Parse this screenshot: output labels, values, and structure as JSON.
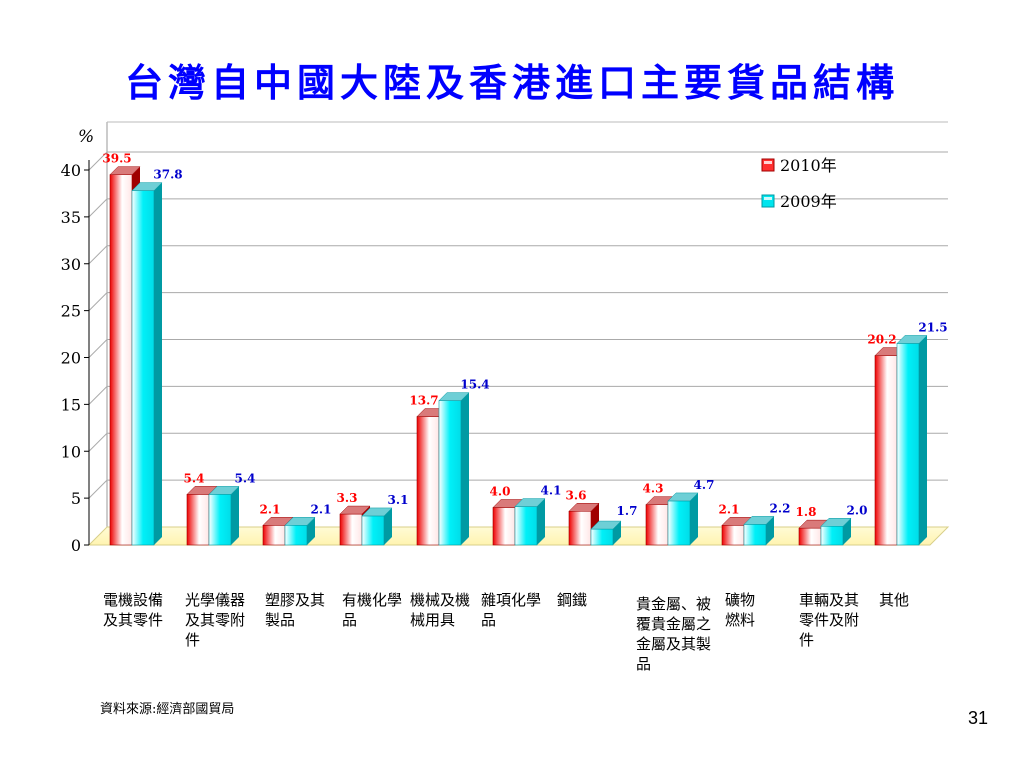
{
  "slide": {
    "title": "台灣自中國大陸及香港進口主要貨品結構",
    "source": "資料來源:經濟部國貿局",
    "page_number": "31"
  },
  "chart_data": {
    "type": "bar",
    "title": "台灣自中國大陸及香港進口主要貨品結構",
    "ylabel": "%",
    "ylim": [
      0,
      40
    ],
    "yticks": [
      0,
      5,
      10,
      15,
      20,
      25,
      30,
      35,
      40
    ],
    "grid": true,
    "legend_position": "top-right",
    "categories": [
      "電機設備及其零件",
      "光學儀器及其零附件",
      "塑膠及其製品",
      "有機化學品",
      "機械及機械用具",
      "雜項化學品",
      "鋼鐵",
      "貴金屬、被覆貴金屬之金屬及其製品",
      "礦物燃料",
      "車輛及其零件及附件",
      "其他"
    ],
    "series": [
      {
        "name": "2010年",
        "color": "#ff0000",
        "label_color": "#ff0000",
        "values": [
          39.5,
          5.4,
          2.1,
          3.3,
          13.7,
          4.0,
          3.6,
          4.3,
          2.1,
          1.8,
          20.2
        ],
        "labels": [
          "39.5",
          "5.4",
          "2.1",
          "3.3",
          "13.7",
          "4.0",
          "3.6",
          "4.3",
          "2.1",
          "1.8",
          "20.2"
        ]
      },
      {
        "name": "2009年",
        "color": "#00e5ee",
        "label_color": "#0000cc",
        "values": [
          37.8,
          5.4,
          2.1,
          3.1,
          15.4,
          4.1,
          1.7,
          4.7,
          2.2,
          2.0,
          21.5
        ],
        "labels": [
          "37.8",
          "5.4",
          "2.1",
          "3.1",
          "15.4",
          "4.1",
          "1.7",
          "4.7",
          "2.2",
          "2.0",
          "21.5"
        ]
      }
    ]
  }
}
